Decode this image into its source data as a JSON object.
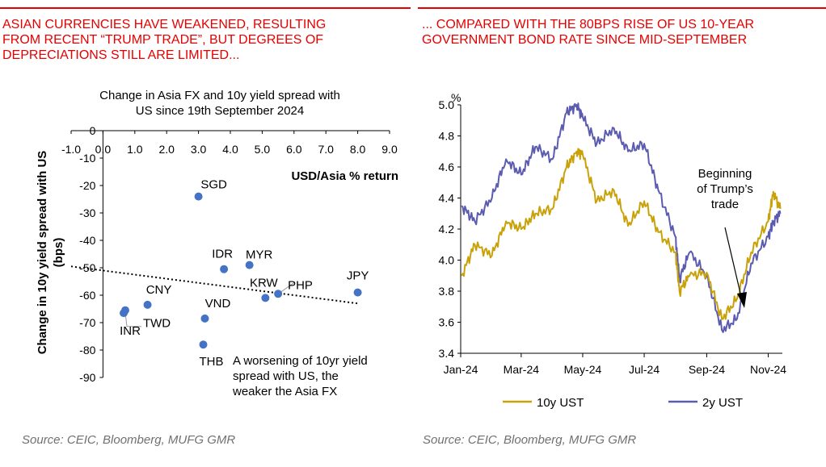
{
  "left": {
    "heading": "ASIAN CURRENCIES HAVE WEAKENED, RESULTING\nFROM RECENT “TRUMP TRADE”, BUT DEGREES OF\nDEPRECIATIONS STILL ARE LIMITED...",
    "source": "Source: CEIC, Bloomberg, MUFG GMR"
  },
  "right": {
    "heading": "... COMPARED WITH THE 80BPS RISE OF US 10-YEAR\nGOVERNMENT BOND RATE SINCE MID-SEPTEMBER",
    "source": "Source: CEIC, Bloomberg, MUFG GMR"
  },
  "colors": {
    "accent": "#e60000",
    "scatter": "#4472c4",
    "ust10": "#c9a20a",
    "ust2": "#5b5bb0",
    "source": "#707070"
  },
  "chart_data": [
    {
      "type": "scatter",
      "title": "Change in Asia FX and 10y yield spread with US since 19th September 2024",
      "title_lines": [
        "Change in Asia FX and 10y yield spread with",
        "US since 19th September 2024"
      ],
      "xlabel": "USD/Asia % return",
      "ylabel": "Change in 10y yield spread with US (bps)",
      "ylabel_lines": [
        "Change in 10y yield spread with US",
        "(bps)"
      ],
      "xlim": [
        -1,
        9
      ],
      "ylim": [
        -90,
        0
      ],
      "x_ticks": [
        "-1.0",
        "0.0",
        "1.0",
        "2.0",
        "3.0",
        "4.0",
        "5.0",
        "6.0",
        "7.0",
        "8.0",
        "9.0"
      ],
      "y_ticks": [
        "0",
        "-10",
        "-20",
        "-30",
        "-40",
        "-50",
        "-60",
        "-70",
        "-80",
        "-90"
      ],
      "points": [
        {
          "label": "SGD",
          "x": 3.0,
          "y": -24
        },
        {
          "label": "MYR",
          "x": 4.6,
          "y": -49
        },
        {
          "label": "IDR",
          "x": 3.8,
          "y": -50.5
        },
        {
          "label": "JPY",
          "x": 8.0,
          "y": -59
        },
        {
          "label": "PHP",
          "x": 5.5,
          "y": -59.5
        },
        {
          "label": "KRW",
          "x": 5.1,
          "y": -61
        },
        {
          "label": "CNY",
          "x": 1.4,
          "y": -63.5
        },
        {
          "label": "TWD",
          "x": 0.7,
          "y": -65.5
        },
        {
          "label": "INR",
          "x": 0.65,
          "y": -66.5
        },
        {
          "label": "VND",
          "x": 3.2,
          "y": -68.5
        },
        {
          "label": "THB",
          "x": 3.15,
          "y": -78
        }
      ],
      "trendline": {
        "x": [
          -1,
          8
        ],
        "y": [
          -49.5,
          -63
        ]
      },
      "annotation": [
        "A worsening of 10yr yield",
        "spread with US, the",
        "weaker the Asia FX"
      ]
    },
    {
      "type": "line",
      "ylabel_unit": "%",
      "ylim": [
        3.4,
        5.0
      ],
      "y_ticks": [
        "5.0",
        "4.8",
        "4.6",
        "4.4",
        "4.2",
        "4.0",
        "3.8",
        "3.6",
        "3.4"
      ],
      "x_ticks": [
        "Jan-24",
        "Mar-24",
        "May-24",
        "Jul-24",
        "Sep-24",
        "Nov-24"
      ],
      "x": [
        "2024-01-02",
        "2024-01-15",
        "2024-02-01",
        "2024-02-15",
        "2024-03-01",
        "2024-03-15",
        "2024-04-01",
        "2024-04-15",
        "2024-04-25",
        "2024-05-01",
        "2024-05-15",
        "2024-06-01",
        "2024-06-15",
        "2024-07-01",
        "2024-07-15",
        "2024-08-01",
        "2024-08-05",
        "2024-08-15",
        "2024-09-01",
        "2024-09-16",
        "2024-10-01",
        "2024-10-15",
        "2024-11-01",
        "2024-11-06",
        "2024-11-13"
      ],
      "series": [
        {
          "name": "10y UST",
          "values": [
            3.9,
            4.1,
            4.03,
            4.25,
            4.2,
            4.3,
            4.33,
            4.6,
            4.7,
            4.68,
            4.38,
            4.45,
            4.22,
            4.38,
            4.18,
            4.05,
            3.8,
            3.9,
            3.92,
            3.62,
            3.75,
            4.05,
            4.25,
            4.44,
            4.33
          ]
        },
        {
          "name": "2y UST",
          "values": [
            4.35,
            4.25,
            4.4,
            4.65,
            4.55,
            4.73,
            4.65,
            4.95,
            5.0,
            4.92,
            4.75,
            4.85,
            4.7,
            4.75,
            4.45,
            4.15,
            3.88,
            4.05,
            3.9,
            3.55,
            3.62,
            3.98,
            4.15,
            4.25,
            4.3
          ]
        }
      ],
      "annotation": [
        "Beginning",
        "of Trump’s",
        "trade"
      ],
      "legend_position": "bottom"
    }
  ]
}
